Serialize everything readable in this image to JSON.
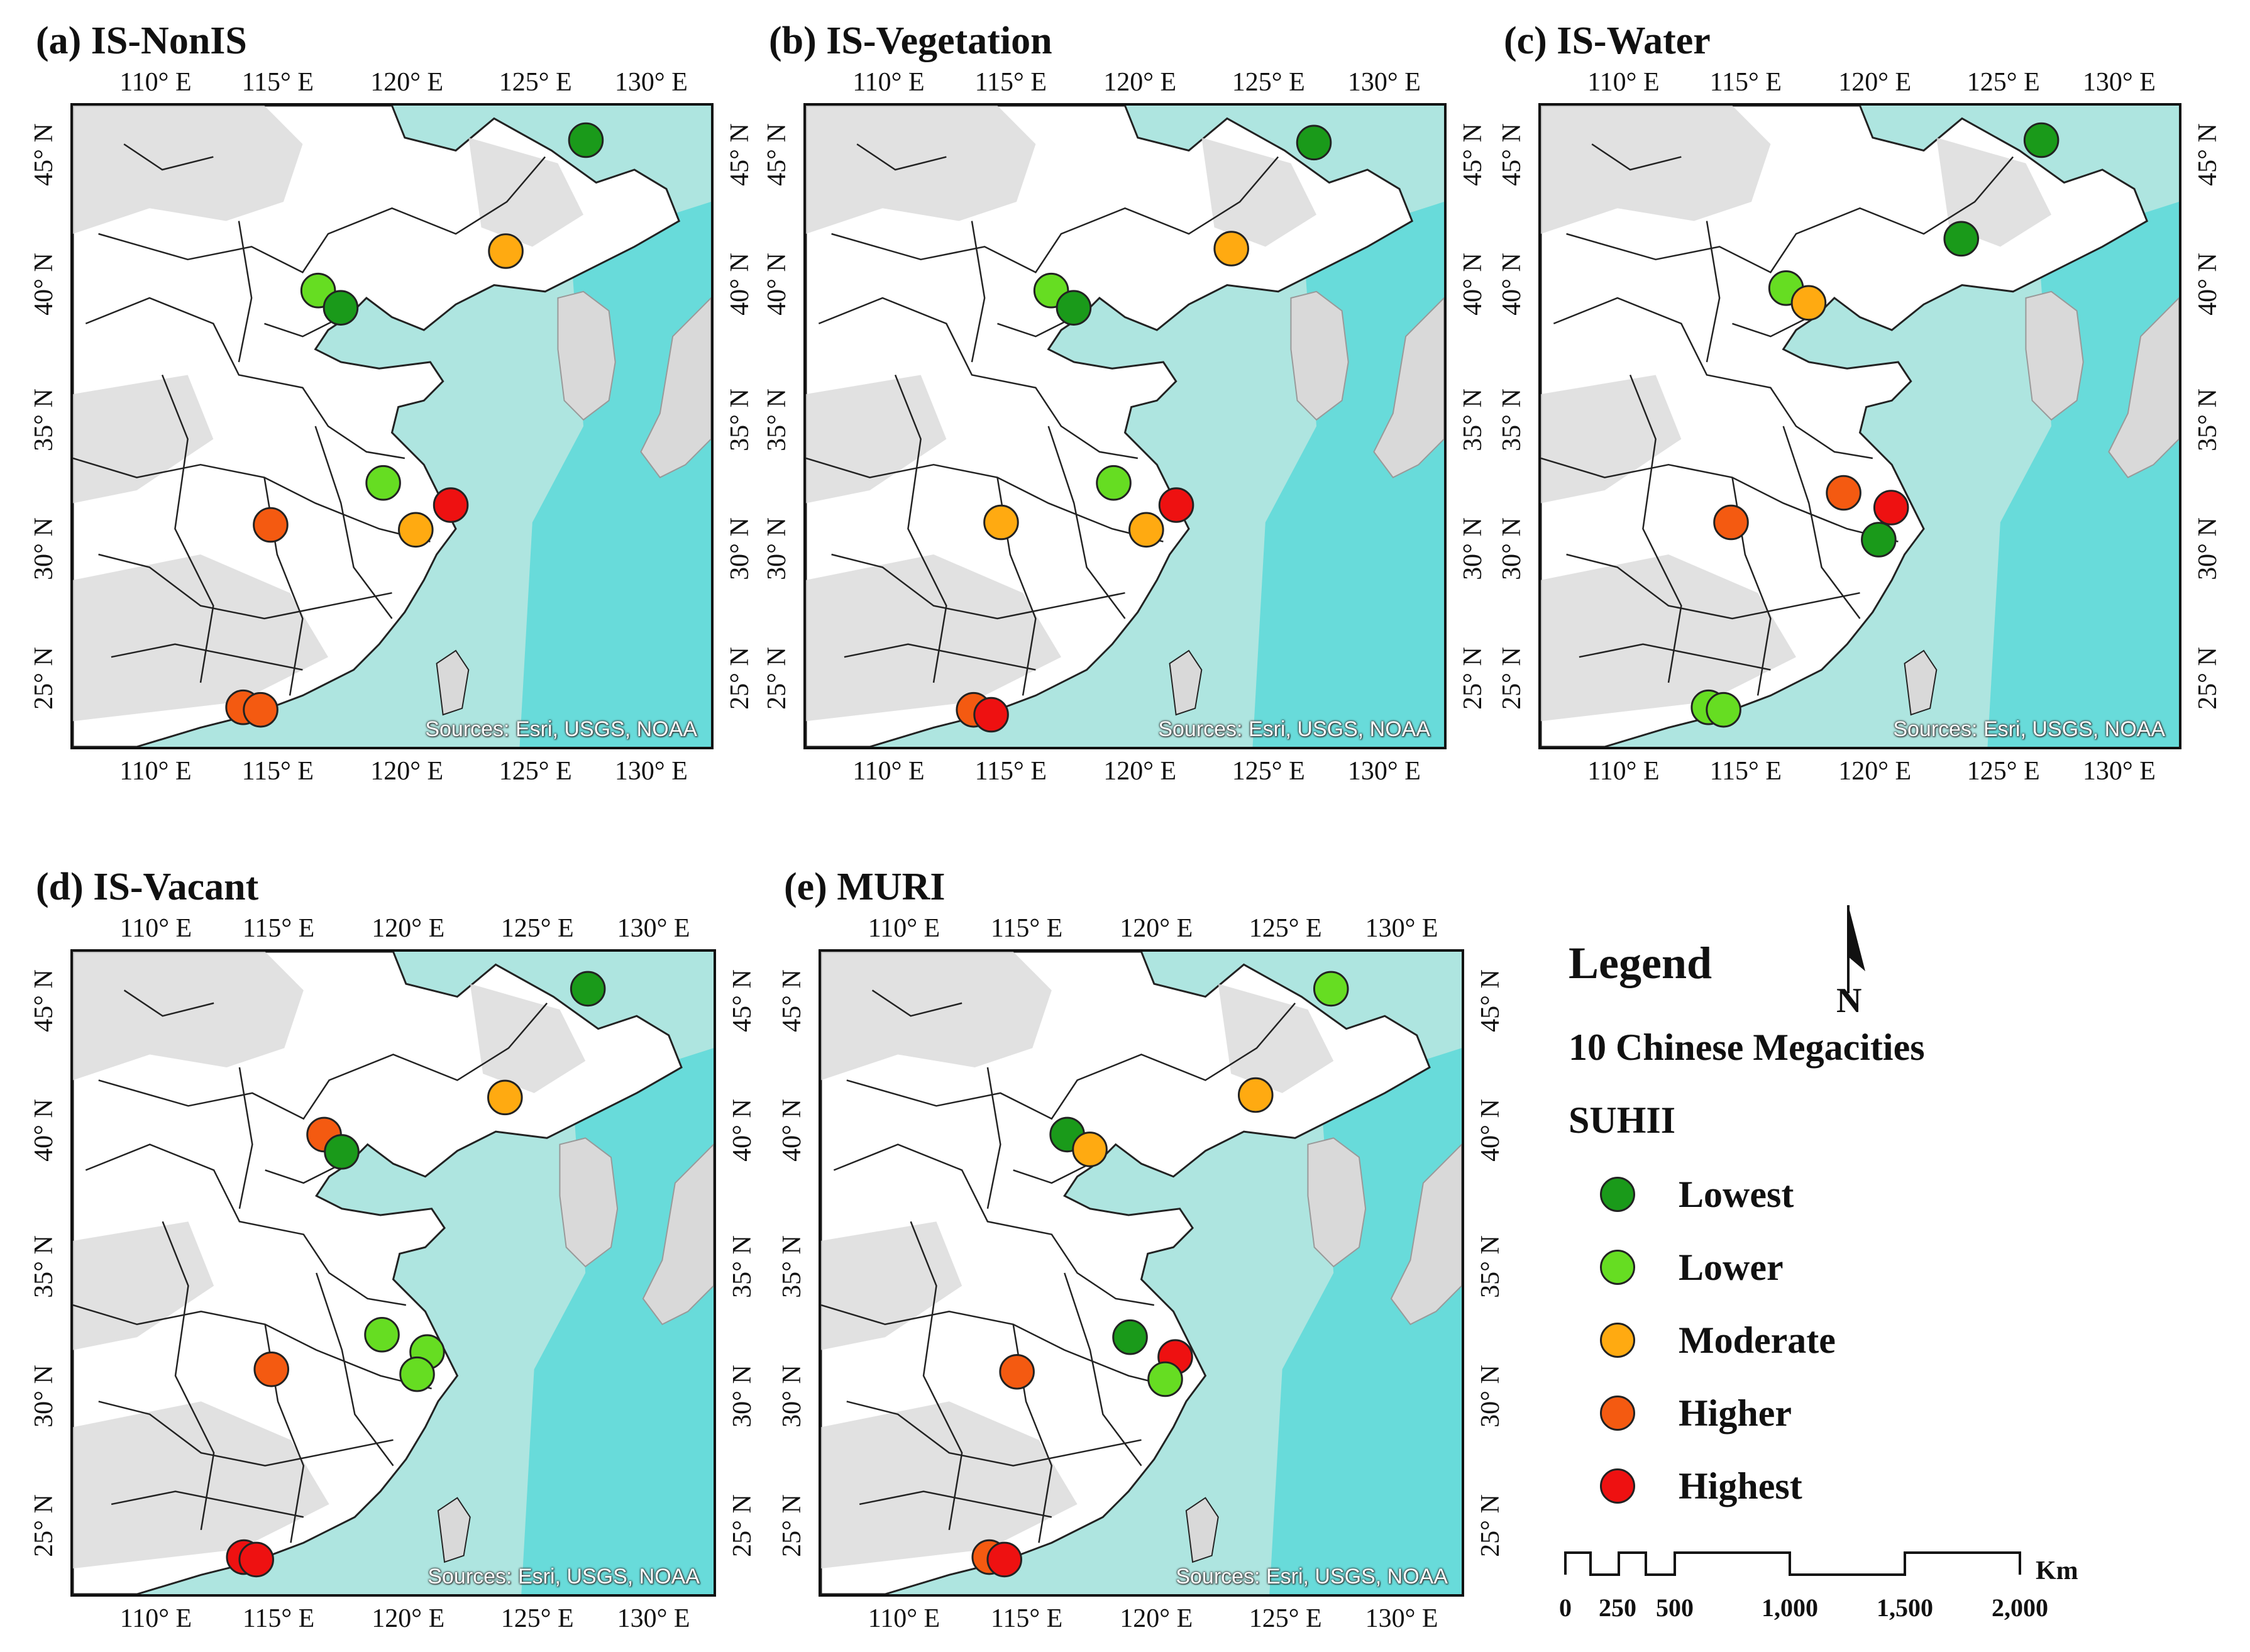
{
  "figure": {
    "panels": [
      {
        "title": "(a) IS-NonIS",
        "x_ticks": [
          "110° E",
          "115° E",
          "120° E",
          "125° E",
          "130° E"
        ],
        "y_ticks": [
          "45° N",
          "40° N",
          "35° N",
          "30° N",
          "25° N"
        ],
        "source": "Sources: Esri, USGS, NOAA",
        "cities": [
          {
            "lon": 127.0,
            "lat": 46.1,
            "level": "Lowest"
          },
          {
            "lon": 123.8,
            "lat": 41.6,
            "level": "Moderate"
          },
          {
            "lon": 116.3,
            "lat": 40.0,
            "level": "Lower"
          },
          {
            "lon": 117.2,
            "lat": 39.3,
            "level": "Lowest"
          },
          {
            "lon": 118.9,
            "lat": 32.2,
            "level": "Lower"
          },
          {
            "lon": 121.6,
            "lat": 31.3,
            "level": "Highest"
          },
          {
            "lon": 120.2,
            "lat": 30.3,
            "level": "Moderate"
          },
          {
            "lon": 114.4,
            "lat": 30.5,
            "level": "Higher"
          },
          {
            "lon": 113.3,
            "lat": 23.1,
            "level": "Higher"
          },
          {
            "lon": 114.0,
            "lat": 23.0,
            "level": "Higher"
          }
        ]
      },
      {
        "title": "(b) IS-Vegetation",
        "x_ticks": [
          "110° E",
          "115° E",
          "120° E",
          "125° E",
          "130° E"
        ],
        "y_ticks": [
          "45° N",
          "40° N",
          "35° N",
          "30° N",
          "25° N"
        ],
        "source": "Sources: Esri, USGS, NOAA",
        "cities": [
          {
            "lon": 126.8,
            "lat": 46.0,
            "level": "Lowest"
          },
          {
            "lon": 123.5,
            "lat": 41.7,
            "level": "Moderate"
          },
          {
            "lon": 116.3,
            "lat": 40.0,
            "level": "Lower"
          },
          {
            "lon": 117.2,
            "lat": 39.3,
            "level": "Lowest"
          },
          {
            "lon": 118.8,
            "lat": 32.2,
            "level": "Lower"
          },
          {
            "lon": 121.3,
            "lat": 31.3,
            "level": "Highest"
          },
          {
            "lon": 120.1,
            "lat": 30.3,
            "level": "Moderate"
          },
          {
            "lon": 114.3,
            "lat": 30.6,
            "level": "Moderate"
          },
          {
            "lon": 113.2,
            "lat": 23.0,
            "level": "Higher"
          },
          {
            "lon": 113.9,
            "lat": 22.8,
            "level": "Highest"
          }
        ]
      },
      {
        "title": "(c) IS-Water",
        "x_ticks": [
          "110° E",
          "115° E",
          "120° E",
          "125° E",
          "130° E"
        ],
        "y_ticks": [
          "45° N",
          "40° N",
          "35° N",
          "30° N",
          "25° N"
        ],
        "source": "Sources: Esri, USGS, NOAA",
        "cities": [
          {
            "lon": 126.5,
            "lat": 46.1,
            "level": "Lowest"
          },
          {
            "lon": 123.3,
            "lat": 42.1,
            "level": "Lowest"
          },
          {
            "lon": 116.3,
            "lat": 40.1,
            "level": "Lower"
          },
          {
            "lon": 117.2,
            "lat": 39.5,
            "level": "Moderate"
          },
          {
            "lon": 118.6,
            "lat": 31.8,
            "level": "Higher"
          },
          {
            "lon": 120.5,
            "lat": 31.2,
            "level": "Highest"
          },
          {
            "lon": 120.0,
            "lat": 29.9,
            "level": "Lowest"
          },
          {
            "lon": 114.1,
            "lat": 30.6,
            "level": "Higher"
          },
          {
            "lon": 113.2,
            "lat": 23.1,
            "level": "Lower"
          },
          {
            "lon": 113.8,
            "lat": 23.0,
            "level": "Lower"
          }
        ]
      },
      {
        "title": "(d) IS-Vacant",
        "x_ticks": [
          "110° E",
          "115° E",
          "120° E",
          "125° E",
          "130° E"
        ],
        "y_ticks": [
          "45° N",
          "40° N",
          "35° N",
          "30° N",
          "25° N"
        ],
        "source": "Sources: Esri, USGS, NOAA",
        "cities": [
          {
            "lon": 127.0,
            "lat": 46.0,
            "level": "Lowest"
          },
          {
            "lon": 123.7,
            "lat": 41.6,
            "level": "Moderate"
          },
          {
            "lon": 116.5,
            "lat": 40.1,
            "level": "Higher"
          },
          {
            "lon": 117.2,
            "lat": 39.4,
            "level": "Lowest"
          },
          {
            "lon": 118.8,
            "lat": 32.0,
            "level": "Lower"
          },
          {
            "lon": 120.6,
            "lat": 31.3,
            "level": "Lower"
          },
          {
            "lon": 120.2,
            "lat": 30.4,
            "level": "Lower"
          },
          {
            "lon": 114.4,
            "lat": 30.6,
            "level": "Higher"
          },
          {
            "lon": 113.3,
            "lat": 23.0,
            "level": "Highest"
          },
          {
            "lon": 113.8,
            "lat": 22.9,
            "level": "Highest"
          }
        ]
      },
      {
        "title": "(e) MURI",
        "x_ticks": [
          "110° E",
          "115° E",
          "120° E",
          "125° E",
          "130° E"
        ],
        "y_ticks": [
          "45° N",
          "40° N",
          "35° N",
          "30° N",
          "25° N"
        ],
        "source": "Sources: Esri, USGS, NOAA",
        "cities": [
          {
            "lon": 126.8,
            "lat": 46.0,
            "level": "Lower"
          },
          {
            "lon": 123.8,
            "lat": 41.7,
            "level": "Moderate"
          },
          {
            "lon": 116.3,
            "lat": 40.1,
            "level": "Lowest"
          },
          {
            "lon": 117.2,
            "lat": 39.5,
            "level": "Moderate"
          },
          {
            "lon": 118.8,
            "lat": 31.9,
            "level": "Lowest"
          },
          {
            "lon": 120.6,
            "lat": 31.1,
            "level": "Highest"
          },
          {
            "lon": 120.2,
            "lat": 30.2,
            "level": "Lower"
          },
          {
            "lon": 114.3,
            "lat": 30.5,
            "level": "Higher"
          },
          {
            "lon": 113.2,
            "lat": 23.0,
            "level": "Higher"
          },
          {
            "lon": 113.8,
            "lat": 22.9,
            "level": "Highest"
          }
        ]
      }
    ]
  },
  "legend": {
    "title": "Legend",
    "subtitle": "10 Chinese Megacities",
    "variable": "SUHII",
    "items": [
      {
        "label": "Lowest",
        "color": "#1a9a1a"
      },
      {
        "label": "Lower",
        "color": "#66dd22"
      },
      {
        "label": "Moderate",
        "color": "#ffaa11"
      },
      {
        "label": "Higher",
        "color": "#f45a11"
      },
      {
        "label": "Highest",
        "color": "#ee1111"
      }
    ]
  },
  "north_arrow": {
    "label": "N"
  },
  "scale_bar": {
    "unit": "Km",
    "labels": [
      "0",
      "250",
      "500",
      "1,000",
      "1,500",
      "2,000"
    ]
  },
  "colors": {
    "sea": "#aee5e0",
    "sea_deep": "#30d3d6",
    "land_relief": "#d9d9d9",
    "land_plain": "#ffffff",
    "border": "#222222"
  }
}
